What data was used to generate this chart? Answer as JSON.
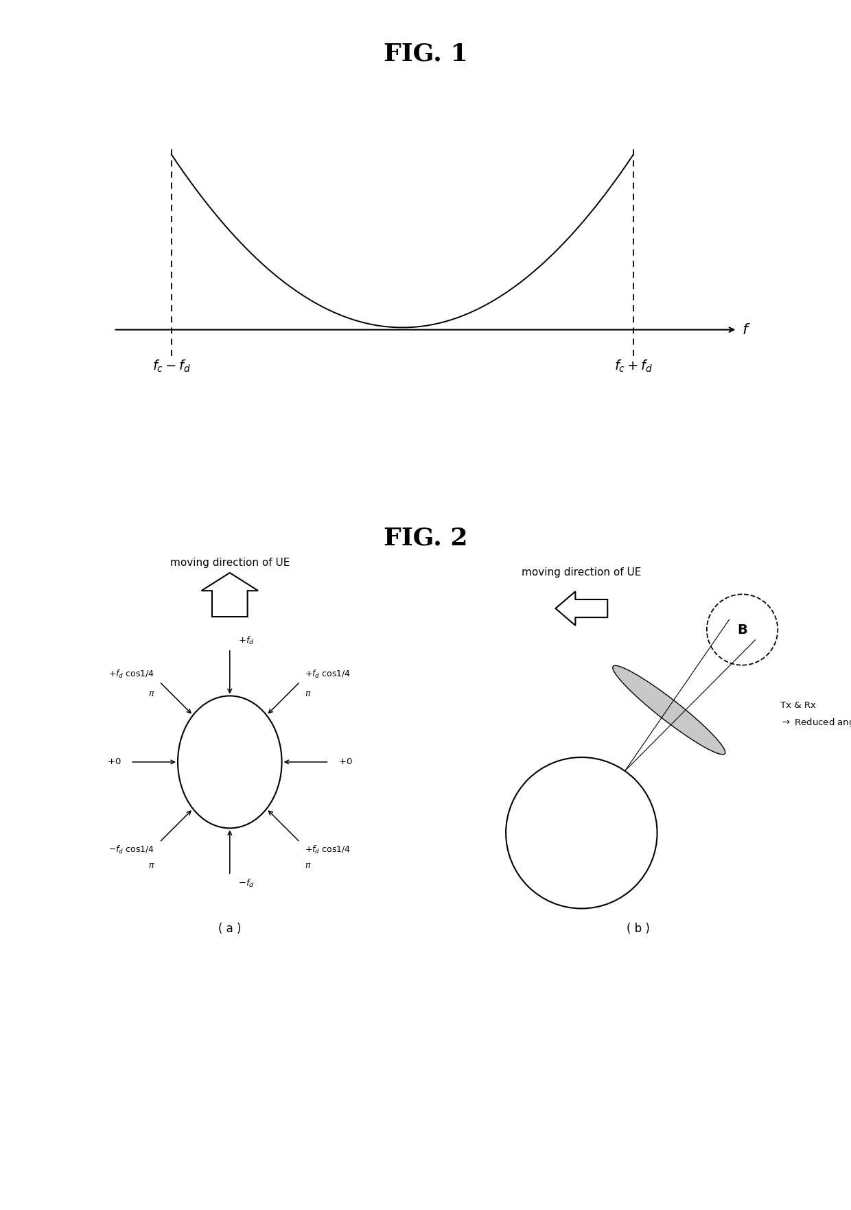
{
  "fig1_title": "FIG. 1",
  "fig2_title": "FIG. 2",
  "bg_color": "#ffffff",
  "line_color": "#000000",
  "fig1_xlabel": "f",
  "label_a": "( a )",
  "label_b_caption": "( b )"
}
